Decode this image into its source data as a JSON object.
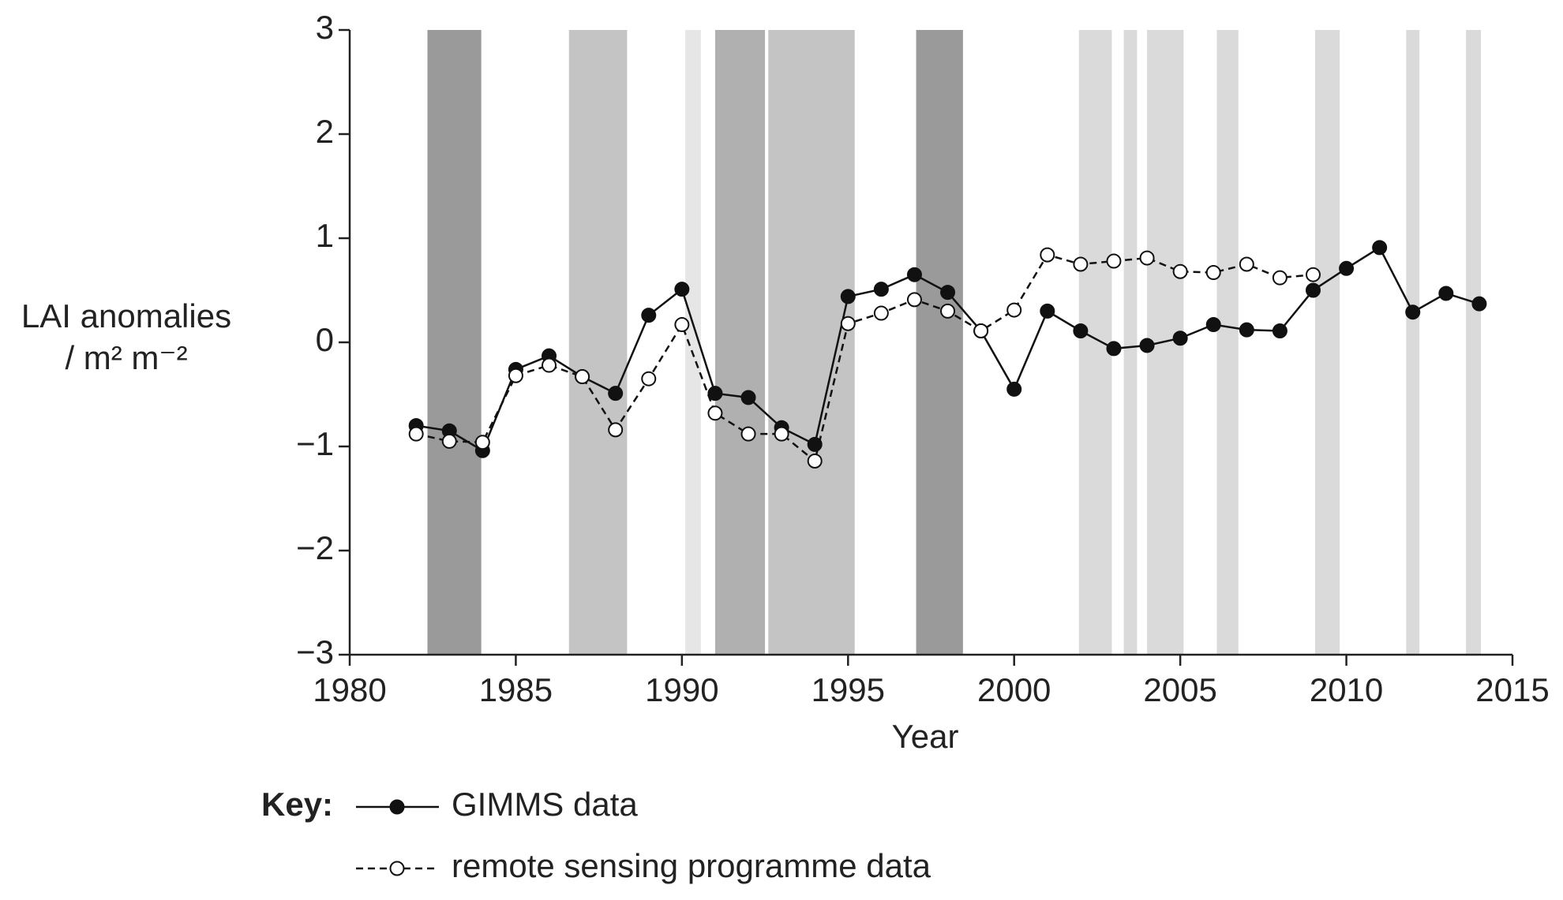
{
  "chart_data": {
    "type": "line",
    "y_label": "LAI anomalies",
    "y_label_units": "/ m² m⁻²",
    "x_label": "Year",
    "legend_title": "Key:",
    "x": [
      1982,
      1983,
      1984,
      1985,
      1986,
      1987,
      1988,
      1989,
      1990,
      1991,
      1992,
      1993,
      1994,
      1995,
      1996,
      1997,
      1998,
      1999,
      2000,
      2001,
      2002,
      2003,
      2004,
      2005,
      2006,
      2007,
      2008,
      2009,
      2010,
      2011,
      2012,
      2013,
      2014
    ],
    "series": [
      {
        "name": "GIMMS data",
        "color": "#111111",
        "marker": "filled",
        "dashed": false,
        "values": [
          -0.8,
          -0.85,
          -1.04,
          -0.26,
          -0.13,
          -0.33,
          -0.49,
          0.26,
          0.51,
          -0.49,
          -0.53,
          -0.82,
          -0.98,
          0.44,
          0.51,
          0.65,
          0.48,
          0.11,
          -0.45,
          0.3,
          0.11,
          -0.06,
          -0.03,
          0.04,
          0.17,
          0.12,
          0.11,
          0.5,
          0.71,
          0.91,
          0.29,
          0.47,
          0.37
        ]
      },
      {
        "name": "remote sensing programme data",
        "color": "#111111",
        "marker": "open",
        "dashed": true,
        "values": [
          -0.88,
          -0.95,
          -0.96,
          -0.32,
          -0.22,
          -0.33,
          -0.84,
          -0.35,
          0.17,
          -0.68,
          -0.88,
          -0.88,
          -1.14,
          0.18,
          0.28,
          0.41,
          0.3,
          0.11,
          0.31,
          0.84,
          0.75,
          0.78,
          0.81,
          0.68,
          0.67,
          0.75,
          0.62,
          0.65,
          null,
          null,
          null,
          null,
          null
        ]
      }
    ],
    "shaded_periods": [
      {
        "x": [
          1982.34,
          1983.96
        ],
        "color": "#9a9a9a"
      },
      {
        "x": [
          1986.6,
          1988.35
        ],
        "color": "#c4c4c4"
      },
      {
        "x": [
          1990.1,
          1990.57
        ],
        "color": "#e6e6e6"
      },
      {
        "x": [
          1991.0,
          1992.5
        ],
        "color": "#b0b0b0"
      },
      {
        "x": [
          1992.6,
          1995.2
        ],
        "color": "#c4c4c4"
      },
      {
        "x": [
          1997.05,
          1998.46
        ],
        "color": "#9a9a9a"
      },
      {
        "x": [
          2001.95,
          2002.94
        ],
        "color": "#dadada"
      },
      {
        "x": [
          2003.3,
          2003.7
        ],
        "color": "#dadada"
      },
      {
        "x": [
          2004.0,
          2005.1
        ],
        "color": "#dadada"
      },
      {
        "x": [
          2006.1,
          2006.75
        ],
        "color": "#dadada"
      },
      {
        "x": [
          2009.06,
          2009.8
        ],
        "color": "#dadada"
      },
      {
        "x": [
          2011.8,
          2012.2
        ],
        "color": "#dadada"
      },
      {
        "x": [
          2013.6,
          2014.05
        ],
        "color": "#dadada"
      }
    ],
    "xlim": [
      1980,
      2015
    ],
    "xticks": [
      1980,
      1985,
      1990,
      1995,
      2000,
      2005,
      2010,
      2015
    ],
    "ylim": [
      -3,
      3
    ],
    "yticks": [
      {
        "value": -3,
        "label": "−3"
      },
      {
        "value": -2,
        "label": "−2"
      },
      {
        "value": -1,
        "label": "−1"
      },
      0,
      1,
      2,
      3
    ]
  }
}
